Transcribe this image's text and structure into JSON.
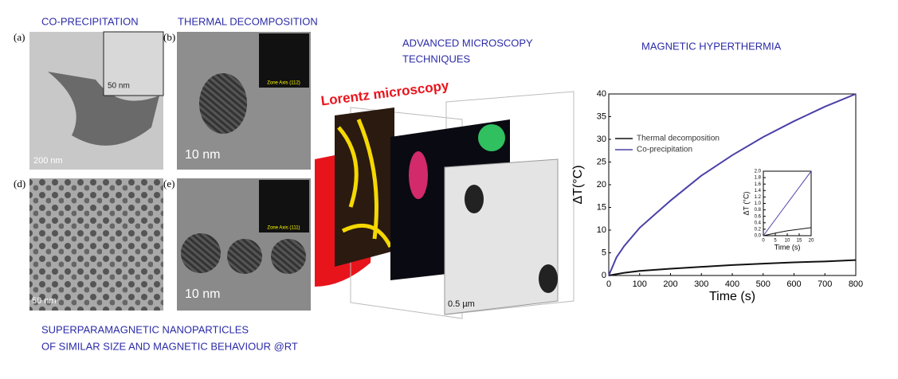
{
  "headings": {
    "coprecipitation": "CO-PRECIPITATION",
    "thermal": "THERMAL DECOMPOSITION",
    "microscopy": [
      "ADVANCED MICROSCOPY",
      "TECHNIQUES"
    ],
    "hyperthermia": "MAGNETIC HYPERTHERMIA",
    "footer": [
      "SUPERPARAMAGNETIC NANOPARTICLES",
      "OF SIMILAR SIZE AND MAGNETIC BEHAVIOUR @RT"
    ]
  },
  "panels": [
    {
      "label": "(a)",
      "scale": "200 nm",
      "inset_scale": "50 nm"
    },
    {
      "label": "(b)",
      "scale": "10 nm",
      "zone": "Zone Axis (112)"
    },
    {
      "label": "(d)",
      "scale": "50 nm"
    },
    {
      "label": "(e)",
      "scale": "10 nm",
      "zone": "Zone Axis (111)"
    }
  ],
  "lorentz": {
    "title": "Lorentz microscopy",
    "scale": "0.5 µm"
  },
  "chart_data": [
    {
      "type": "line",
      "xlabel": "Time (s)",
      "ylabel": "ΔT(°C)",
      "legend": "upper left",
      "xlim": [
        0,
        800
      ],
      "ylim": [
        0,
        40
      ],
      "xticks": [
        0,
        100,
        200,
        300,
        400,
        500,
        600,
        700,
        800
      ],
      "yticks": [
        0,
        5,
        10,
        15,
        20,
        25,
        30,
        35,
        40
      ],
      "series": [
        {
          "name": "Thermal decomposition",
          "color": "#111111",
          "x": [
            0,
            50,
            100,
            200,
            300,
            400,
            500,
            600,
            700,
            800
          ],
          "values": [
            0,
            0.6,
            1.0,
            1.5,
            1.9,
            2.3,
            2.6,
            2.9,
            3.1,
            3.4
          ]
        },
        {
          "name": "Co-precipitation",
          "color": "#4a40a8",
          "x": [
            0,
            25,
            50,
            100,
            150,
            200,
            300,
            400,
            500,
            600,
            700,
            800
          ],
          "values": [
            0,
            4,
            6.5,
            10.5,
            13.5,
            16.5,
            22,
            26.5,
            30.5,
            34,
            37.2,
            40
          ]
        }
      ]
    },
    {
      "type": "line",
      "xlabel": "Time (s)",
      "ylabel": "ΔT (°C)",
      "xlim": [
        0,
        20
      ],
      "ylim": [
        0,
        2
      ],
      "xticks": [
        0,
        5,
        10,
        15,
        20
      ],
      "yticks": [
        {
          "value": 0,
          "label": "0.0"
        },
        {
          "value": 0.2,
          "label": "0.2"
        },
        {
          "value": 0.4,
          "label": "0.4"
        },
        {
          "value": 0.6,
          "label": "0.6"
        },
        {
          "value": 0.8,
          "label": "0.8"
        },
        {
          "value": 1,
          "label": "1.0"
        },
        {
          "value": 1.2,
          "label": "1.2"
        },
        {
          "value": 1.4,
          "label": "1.4"
        },
        {
          "value": 1.6,
          "label": "1.6"
        },
        {
          "value": 1.8,
          "label": "1.8"
        },
        {
          "value": 2,
          "label": "2.0"
        }
      ],
      "series": [
        {
          "name": "Thermal decomposition",
          "color": "#111111",
          "x": [
            0,
            5,
            10,
            15,
            20
          ],
          "values": [
            0,
            0.08,
            0.15,
            0.2,
            0.25
          ]
        },
        {
          "name": "Co-precipitation",
          "color": "#4a40a8",
          "x": [
            0,
            5,
            10,
            15,
            20
          ],
          "values": [
            0,
            0.5,
            1.0,
            1.5,
            2.0
          ]
        }
      ]
    }
  ]
}
